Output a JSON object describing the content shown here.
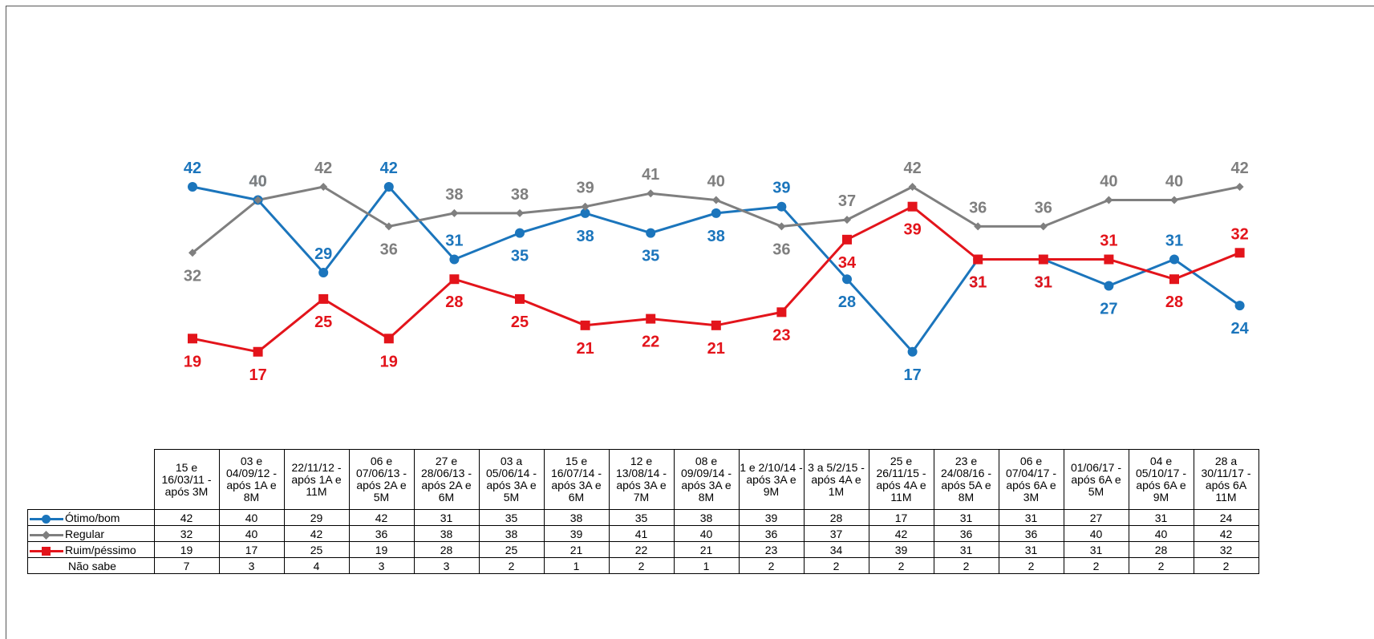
{
  "chart_data": {
    "type": "line",
    "categories": [
      "15 e 16/03/11 - após 3M",
      "03 e 04/09/12 - após 1A e 8M",
      "22/11/12 - após 1A e 11M",
      "06 e 07/06/13 - após 2A e 5M",
      "27 e 28/06/13 - após 2A e 6M",
      "03 a 05/06/14 - após 3A e 5M",
      "15 e 16/07/14 - após 3A e 6M",
      "12 e 13/08/14 - após 3A e 7M",
      "08 e 09/09/14 - após 3A e 8M",
      "1 e 2/10/14 - após 3A e 9M",
      "3 a 5/2/15 - após 4A e 1M",
      "25 e 26/11/15 - após 4A e 11M",
      "23 e 24/08/16 - após 5A e 8M",
      "06 e 07/04/17 - após 6A e 3M",
      "01/06/17 - após 6A e 5M",
      "04 e 05/10/17 - após 6A e 9M",
      "28 a 30/11/17 - após 6A 11M"
    ],
    "series": [
      {
        "name": "Ótimo/bom",
        "color": "#1b75bc",
        "marker": "circle",
        "values": [
          42,
          40,
          29,
          42,
          31,
          35,
          38,
          35,
          38,
          39,
          28,
          17,
          31,
          31,
          27,
          31,
          24
        ]
      },
      {
        "name": "Regular",
        "color": "#7f7f7f",
        "marker": "diamond",
        "values": [
          32,
          40,
          42,
          36,
          38,
          38,
          39,
          41,
          40,
          36,
          37,
          42,
          36,
          36,
          40,
          40,
          42
        ]
      },
      {
        "name": "Ruim/péssimo",
        "color": "#e3141b",
        "marker": "square",
        "values": [
          19,
          17,
          25,
          19,
          28,
          25,
          21,
          22,
          21,
          23,
          34,
          39,
          31,
          31,
          31,
          28,
          32
        ]
      }
    ],
    "table_rows": [
      {
        "label": "Ótimo/bom",
        "series_index": 0
      },
      {
        "label": "Regular",
        "series_index": 1
      },
      {
        "label": "Ruim/péssimo",
        "series_index": 2
      },
      {
        "label": "Não sabe",
        "values": [
          7,
          3,
          4,
          3,
          3,
          2,
          1,
          2,
          1,
          2,
          2,
          2,
          2,
          2,
          2,
          2,
          2
        ]
      }
    ],
    "ylim": [
      0,
      60
    ],
    "grid": false,
    "legend": "data-table"
  }
}
